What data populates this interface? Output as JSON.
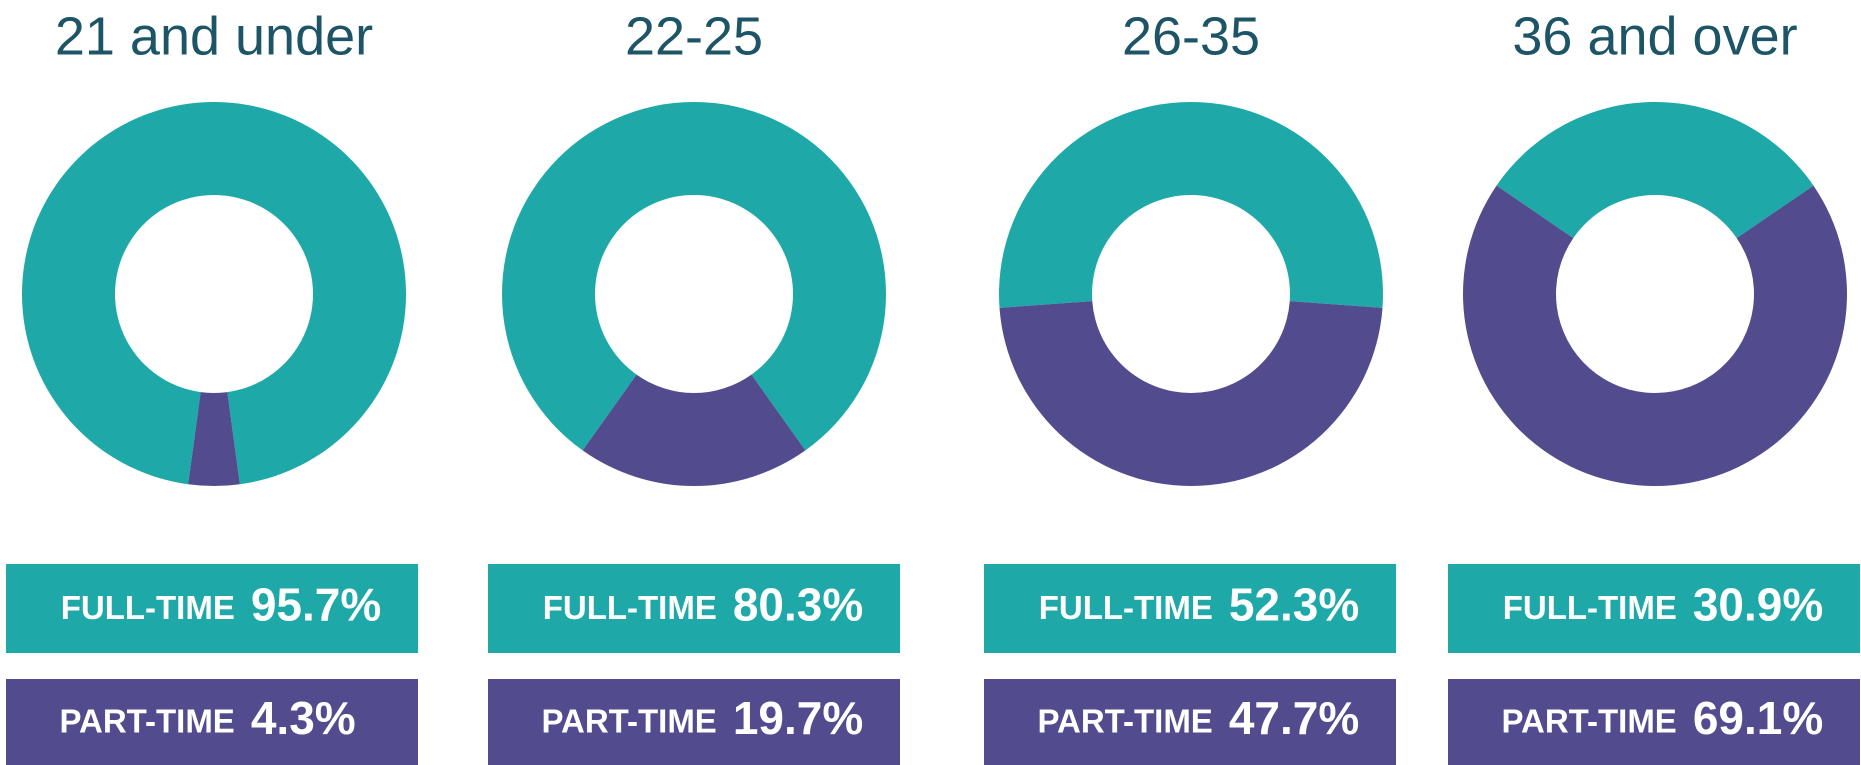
{
  "chart_data": [
    {
      "type": "pie",
      "title": "21 and under",
      "categories": [
        "FULL-TIME",
        "PART-TIME"
      ],
      "values": [
        95.7,
        4.3
      ],
      "value_labels": [
        "95.7%",
        "4.3%"
      ],
      "colors": [
        "#1ea9a8",
        "#524c8e"
      ]
    },
    {
      "type": "pie",
      "title": "22-25",
      "categories": [
        "FULL-TIME",
        "PART-TIME"
      ],
      "values": [
        80.3,
        19.7
      ],
      "value_labels": [
        "80.3%",
        "19.7%"
      ],
      "colors": [
        "#1ea9a8",
        "#524c8e"
      ]
    },
    {
      "type": "pie",
      "title": "26-35",
      "categories": [
        "FULL-TIME",
        "PART-TIME"
      ],
      "values": [
        52.3,
        47.7
      ],
      "value_labels": [
        "52.3%",
        "47.7%"
      ],
      "colors": [
        "#1ea9a8",
        "#524c8e"
      ]
    },
    {
      "type": "pie",
      "title": "36 and over",
      "categories": [
        "FULL-TIME",
        "PART-TIME"
      ],
      "values": [
        30.9,
        69.1
      ],
      "value_labels": [
        "30.9%",
        "69.1%"
      ],
      "colors": [
        "#1ea9a8",
        "#524c8e"
      ]
    }
  ]
}
